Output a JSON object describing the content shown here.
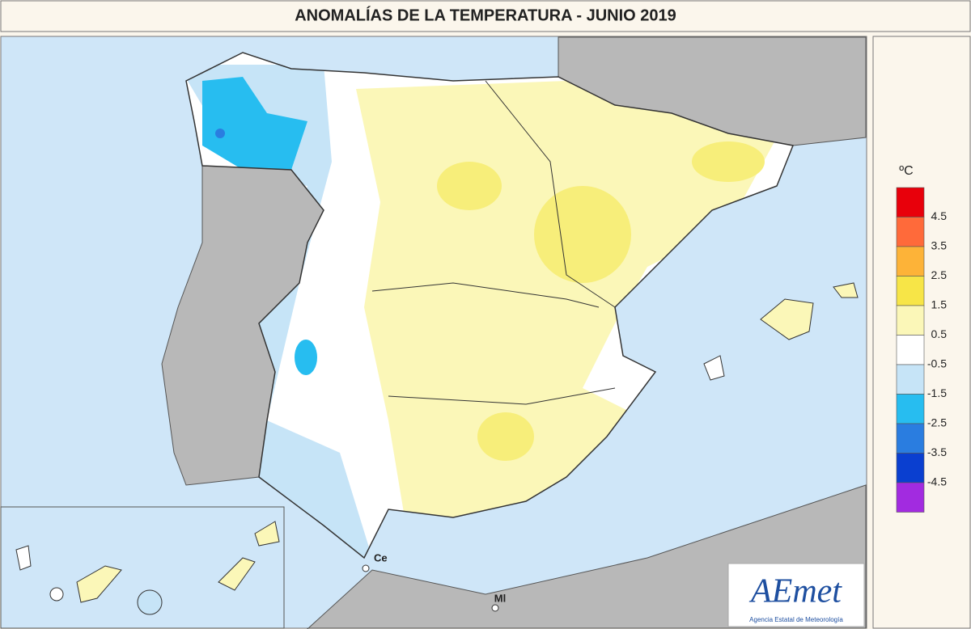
{
  "header": {
    "title": "ANOMALÍAS DE LA TEMPERATURA - JUNIO 2019"
  },
  "map": {
    "labels": [
      "Ce",
      "Ml"
    ]
  },
  "legend": {
    "unit": "ºC",
    "colors": [
      "#e8000b",
      "#ff6a3a",
      "#fdb338",
      "#f7e547",
      "#fbf7b8",
      "#ffffff",
      "#c6e4f7",
      "#27bdf0",
      "#2a7de0",
      "#0a3fd0",
      "#a22be0"
    ],
    "ticks": [
      "4.5",
      "3.5",
      "2.5",
      "1.5",
      "0.5",
      "-0.5",
      "-1.5",
      "-2.5",
      "-3.5",
      "-4.5"
    ]
  },
  "logo": {
    "name": "AEmet",
    "subtitle": "Agencia Estatal de Meteorología"
  }
}
